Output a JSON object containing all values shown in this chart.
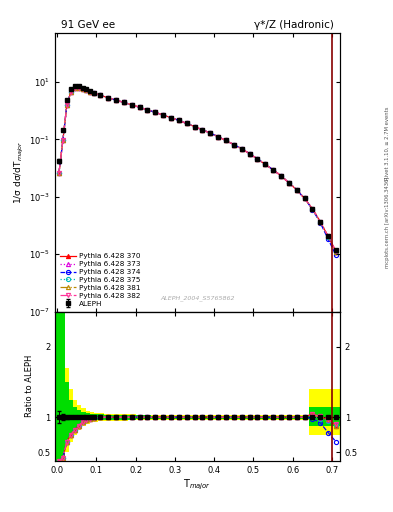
{
  "title_left": "91 GeV ee",
  "title_right": "γ*/Z (Hadronic)",
  "ylabel_main": "1/σ dσ/dT$_{major}$",
  "ylabel_ratio": "Ratio to ALEPH",
  "xlabel": "T$_{major}$",
  "rivet_label": "Rivet 3.1.10, ≥ 2.7M events",
  "inspire_label": "arXiv:1306.3436",
  "mcplots_label": "mcplots.cern.ch [arXiv:1306.3436]",
  "analysis_label": "ALEPH_2004_S5765862",
  "ylim_main": [
    1e-07,
    500
  ],
  "ylim_ratio": [
    0.38,
    2.5
  ],
  "xlim": [
    -0.005,
    0.72
  ],
  "data_x": [
    0.005,
    0.015,
    0.025,
    0.035,
    0.045,
    0.055,
    0.065,
    0.075,
    0.085,
    0.095,
    0.11,
    0.13,
    0.15,
    0.17,
    0.19,
    0.21,
    0.23,
    0.25,
    0.27,
    0.29,
    0.31,
    0.33,
    0.35,
    0.37,
    0.39,
    0.41,
    0.43,
    0.45,
    0.47,
    0.49,
    0.51,
    0.53,
    0.55,
    0.57,
    0.59,
    0.61,
    0.63,
    0.65,
    0.67,
    0.69,
    0.71
  ],
  "data_y": [
    0.018,
    0.22,
    2.4,
    5.8,
    7.4,
    7.0,
    6.2,
    5.5,
    4.8,
    4.15,
    3.45,
    2.85,
    2.35,
    1.95,
    1.62,
    1.32,
    1.08,
    0.88,
    0.71,
    0.575,
    0.46,
    0.36,
    0.28,
    0.218,
    0.166,
    0.124,
    0.092,
    0.066,
    0.047,
    0.032,
    0.021,
    0.0135,
    0.0088,
    0.0054,
    0.0031,
    0.00175,
    0.00088,
    0.00037,
    0.000135,
    4.3e-05,
    1.4e-05
  ],
  "data_yerr_lo": [
    0.003,
    0.02,
    0.1,
    0.15,
    0.15,
    0.1,
    0.08,
    0.06,
    0.05,
    0.04,
    0.03,
    0.025,
    0.02,
    0.015,
    0.012,
    0.01,
    0.008,
    0.007,
    0.006,
    0.005,
    0.004,
    0.003,
    0.0025,
    0.002,
    0.0015,
    0.001,
    0.0008,
    0.0006,
    0.0004,
    0.0003,
    0.0002,
    0.00013,
    8e-05,
    5e-05,
    3e-05,
    1.5e-05,
    8e-06,
    4e-06,
    1.5e-06,
    5e-07,
    2e-07
  ],
  "mc_colors": [
    "#ff0000",
    "#dd00dd",
    "#0000ff",
    "#00bbbb",
    "#bb8800",
    "#ff3399"
  ],
  "mc_markers": [
    "^",
    "^",
    "o",
    "o",
    "^",
    "v"
  ],
  "mc_linestyles": [
    "-",
    ":",
    "--",
    ":",
    "-.",
    "-."
  ],
  "mc_labels": [
    "Pythia 6.428 370",
    "Pythia 6.428 373",
    "Pythia 6.428 374",
    "Pythia 6.428 375",
    "Pythia 6.428 381",
    "Pythia 6.428 382"
  ],
  "mc_mfc": [
    "#ff0000",
    "none",
    "none",
    "none",
    "none",
    "none"
  ],
  "vline_x": 0.7,
  "background_color": "#ffffff"
}
